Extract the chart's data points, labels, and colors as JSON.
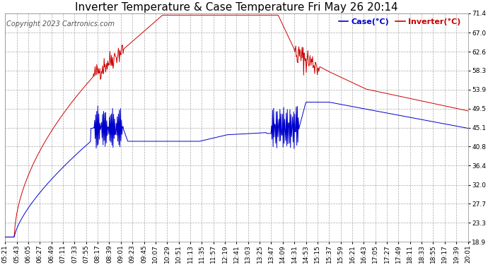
{
  "title": "Inverter Temperature & Case Temperature Fri May 26 20:14",
  "copyright": "Copyright 2023 Cartronics.com",
  "legend_case": "Case(°C)",
  "legend_inverter": "Inverter(°C)",
  "yticks": [
    18.9,
    23.3,
    27.7,
    32.0,
    36.4,
    40.8,
    45.1,
    49.5,
    53.9,
    58.3,
    62.6,
    67.0,
    71.4
  ],
  "ylim": [
    18.9,
    71.4
  ],
  "xtick_labels": [
    "05:21",
    "05:43",
    "06:05",
    "06:27",
    "06:49",
    "07:11",
    "07:33",
    "07:55",
    "08:17",
    "08:39",
    "09:01",
    "09:23",
    "09:45",
    "10:07",
    "10:29",
    "10:51",
    "11:13",
    "11:35",
    "11:57",
    "12:19",
    "12:41",
    "13:03",
    "13:25",
    "13:47",
    "14:09",
    "14:31",
    "14:53",
    "15:15",
    "15:37",
    "15:59",
    "16:21",
    "16:43",
    "17:05",
    "17:27",
    "17:49",
    "18:11",
    "18:33",
    "18:55",
    "19:17",
    "19:39",
    "20:01"
  ],
  "bg_color": "#ffffff",
  "plot_bg_color": "#ffffff",
  "grid_color": "#aaaaaa",
  "case_color": "#0000cc",
  "inverter_color": "#cc0000",
  "title_color": "#000000",
  "copyright_color": "#555555",
  "title_fontsize": 11,
  "copyright_fontsize": 7,
  "tick_fontsize": 6.5,
  "legend_fontsize": 8
}
